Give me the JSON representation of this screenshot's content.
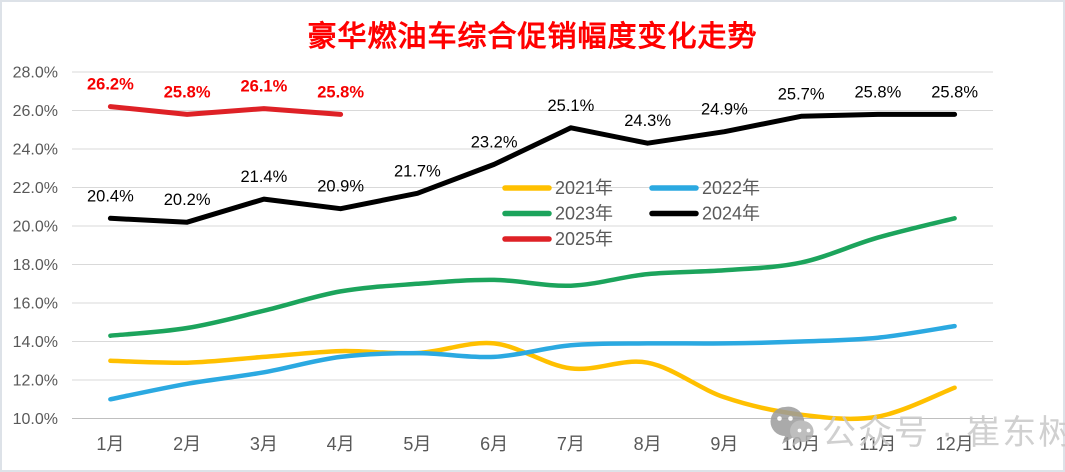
{
  "title": "豪华燃油车综合促销幅度变化走势",
  "watermark": {
    "icon": "wechat-icon",
    "text": "公众号 · 崔东树"
  },
  "chart_data": {
    "type": "line",
    "title": "豪华燃油车综合促销幅度变化走势",
    "xlabel": "",
    "ylabel": "",
    "categories": [
      "1月",
      "2月",
      "3月",
      "4月",
      "5月",
      "6月",
      "7月",
      "8月",
      "9月",
      "10月",
      "11月",
      "12月"
    ],
    "y_tick_labels": [
      "10.0%",
      "12.0%",
      "14.0%",
      "16.0%",
      "18.0%",
      "20.0%",
      "22.0%",
      "24.0%",
      "26.0%",
      "28.0%"
    ],
    "ylim": [
      10,
      28
    ],
    "ytick_step": 2,
    "grid": true,
    "legend_position": "inside-upper-middle",
    "legend_entries": [
      "2021年",
      "2022年",
      "2023年",
      "2024年",
      "2025年"
    ],
    "series": [
      {
        "name": "2021年",
        "color": "#FFC000",
        "smooth": true,
        "show_labels": false,
        "values": [
          13.0,
          12.9,
          13.2,
          13.5,
          13.4,
          13.9,
          12.6,
          12.9,
          11.1,
          10.2,
          10.1,
          11.6
        ]
      },
      {
        "name": "2022年",
        "color": "#2BA9E1",
        "smooth": true,
        "show_labels": false,
        "values": [
          11.0,
          11.8,
          12.4,
          13.2,
          13.4,
          13.2,
          13.8,
          13.9,
          13.9,
          14.0,
          14.2,
          14.8
        ]
      },
      {
        "name": "2023年",
        "color": "#1CA45C",
        "smooth": true,
        "show_labels": false,
        "values": [
          14.3,
          14.7,
          15.6,
          16.6,
          17.0,
          17.2,
          16.9,
          17.5,
          17.7,
          18.1,
          19.4,
          20.4
        ]
      },
      {
        "name": "2024年",
        "color": "#000000",
        "smooth": false,
        "show_labels": true,
        "label_color": "#000000",
        "label_bold": false,
        "values": [
          20.4,
          20.2,
          21.4,
          20.9,
          21.7,
          23.2,
          25.1,
          24.3,
          24.9,
          25.7,
          25.8,
          25.8
        ]
      },
      {
        "name": "2025年",
        "color": "#DE2126",
        "smooth": false,
        "show_labels": true,
        "label_color": "#F50000",
        "label_bold": true,
        "values": [
          26.2,
          25.8,
          26.1,
          25.8
        ]
      }
    ]
  },
  "colors": {
    "title": "#FF0000",
    "axis_text": "#595959",
    "grid_line": "#D9D9D9",
    "axis_line": "#BFBFBF",
    "legend_text": "#595959",
    "watermark_text": "#C8C8C8",
    "watermark_icon": "#9C9C9C"
  }
}
